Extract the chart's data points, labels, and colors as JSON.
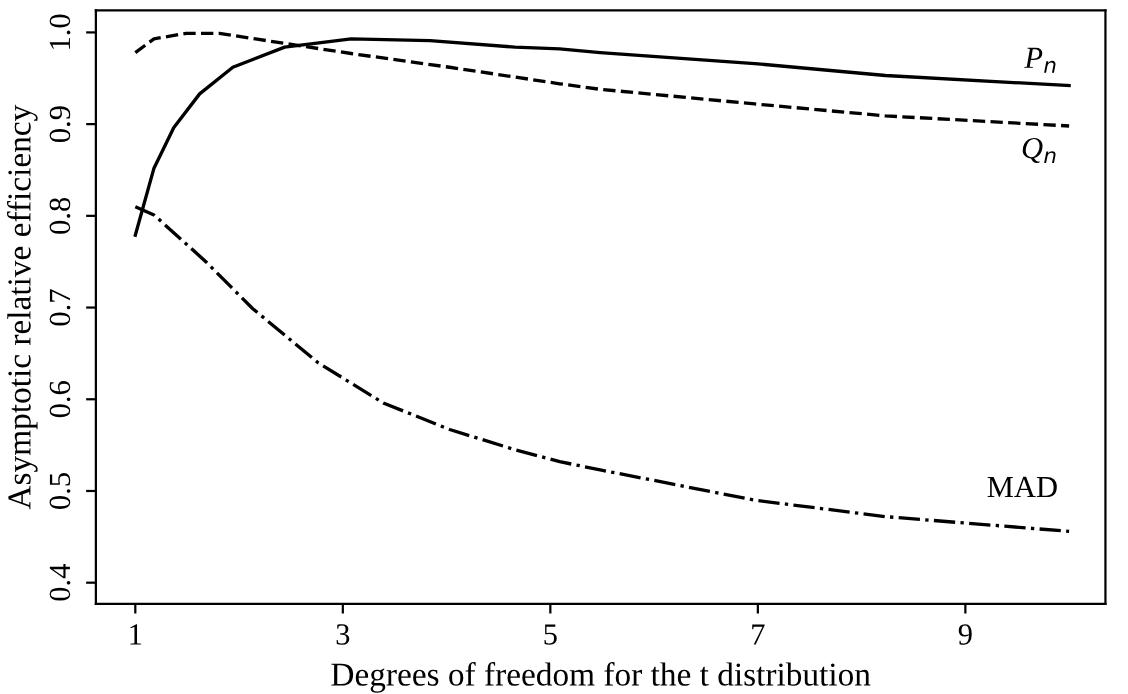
{
  "chart_data": {
    "type": "line",
    "xlabel": "Degrees of freedom for the t distribution",
    "ylabel": "Asymptotic relative efficiency",
    "xlim": [
      0.62,
      10.35
    ],
    "ylim": [
      0.377,
      1.024
    ],
    "xticks": [
      1,
      3,
      5,
      7,
      9
    ],
    "yticks": [
      0.4,
      0.5,
      0.6,
      0.7,
      0.8,
      0.9,
      {
        "value": 1.0,
        "label": "1.0"
      }
    ],
    "grid": false,
    "legend": false,
    "marker": "none",
    "series": [
      {
        "name": "P$_{n}$",
        "color": "#000000",
        "line_style": "solid",
        "x": [
          1,
          1.18,
          1.37,
          1.62,
          1.94,
          2.44,
          3.08,
          3.84,
          4.66,
          5.09,
          5.48,
          6.97,
          8.23,
          10.0
        ],
        "values": [
          0.779,
          0.852,
          0.896,
          0.933,
          0.962,
          0.984,
          0.993,
          0.991,
          0.984,
          0.982,
          0.978,
          0.966,
          0.953,
          0.942
        ]
      },
      {
        "name": "Q$_{n}$",
        "color": "#000000",
        "line_style": "dashed",
        "x": [
          1,
          1.18,
          1.49,
          1.81,
          2.44,
          3.08,
          4.03,
          5.09,
          5.48,
          6.97,
          8.23,
          10.0
        ],
        "values": [
          0.978,
          0.993,
          0.999,
          0.999,
          0.988,
          0.977,
          0.962,
          0.944,
          0.938,
          0.922,
          0.909,
          0.898
        ]
      },
      {
        "name": "MAD",
        "color": "#000000",
        "line_style": "dashdot",
        "x": [
          1,
          1.18,
          1.68,
          2.13,
          2.76,
          3.39,
          4.03,
          4.66,
          5.09,
          5.48,
          6.97,
          8.23,
          10.0
        ],
        "values": [
          0.81,
          0.801,
          0.75,
          0.699,
          0.64,
          0.596,
          0.567,
          0.545,
          0.532,
          0.523,
          0.49,
          0.472,
          0.456
        ]
      }
    ]
  }
}
